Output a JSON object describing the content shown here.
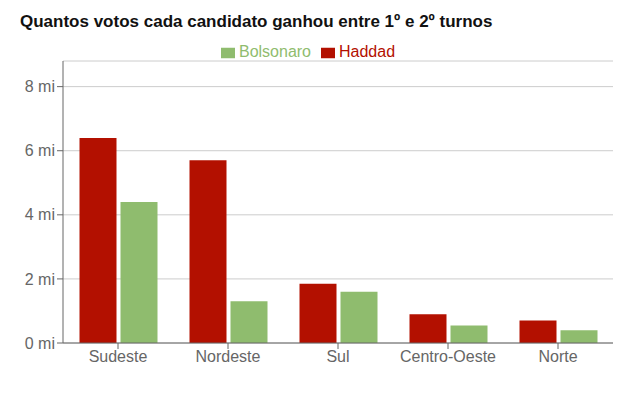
{
  "chart_data": {
    "type": "bar",
    "title": "Quantos votos cada candidato ganhou entre 1º e 2º turnos",
    "categories": [
      "Sudeste",
      "Nordeste",
      "Sul",
      "Centro-Oeste",
      "Norte"
    ],
    "series": [
      {
        "name": "Haddad",
        "color": "#b31000",
        "values": [
          6.4,
          5.7,
          1.85,
          0.9,
          0.7
        ]
      },
      {
        "name": "Bolsonaro",
        "color": "#8fbc6e",
        "values": [
          4.4,
          1.3,
          1.6,
          0.55,
          0.4
        ]
      }
    ],
    "ylim": [
      0,
      8.8
    ],
    "yticks": [
      {
        "value": 0,
        "label": "0 mi"
      },
      {
        "value": 2,
        "label": "2 mi"
      },
      {
        "value": 4,
        "label": "4 mi"
      },
      {
        "value": 6,
        "label": "6 mi"
      },
      {
        "value": 8,
        "label": "8 mi"
      }
    ],
    "grid": true,
    "legend": "top"
  }
}
